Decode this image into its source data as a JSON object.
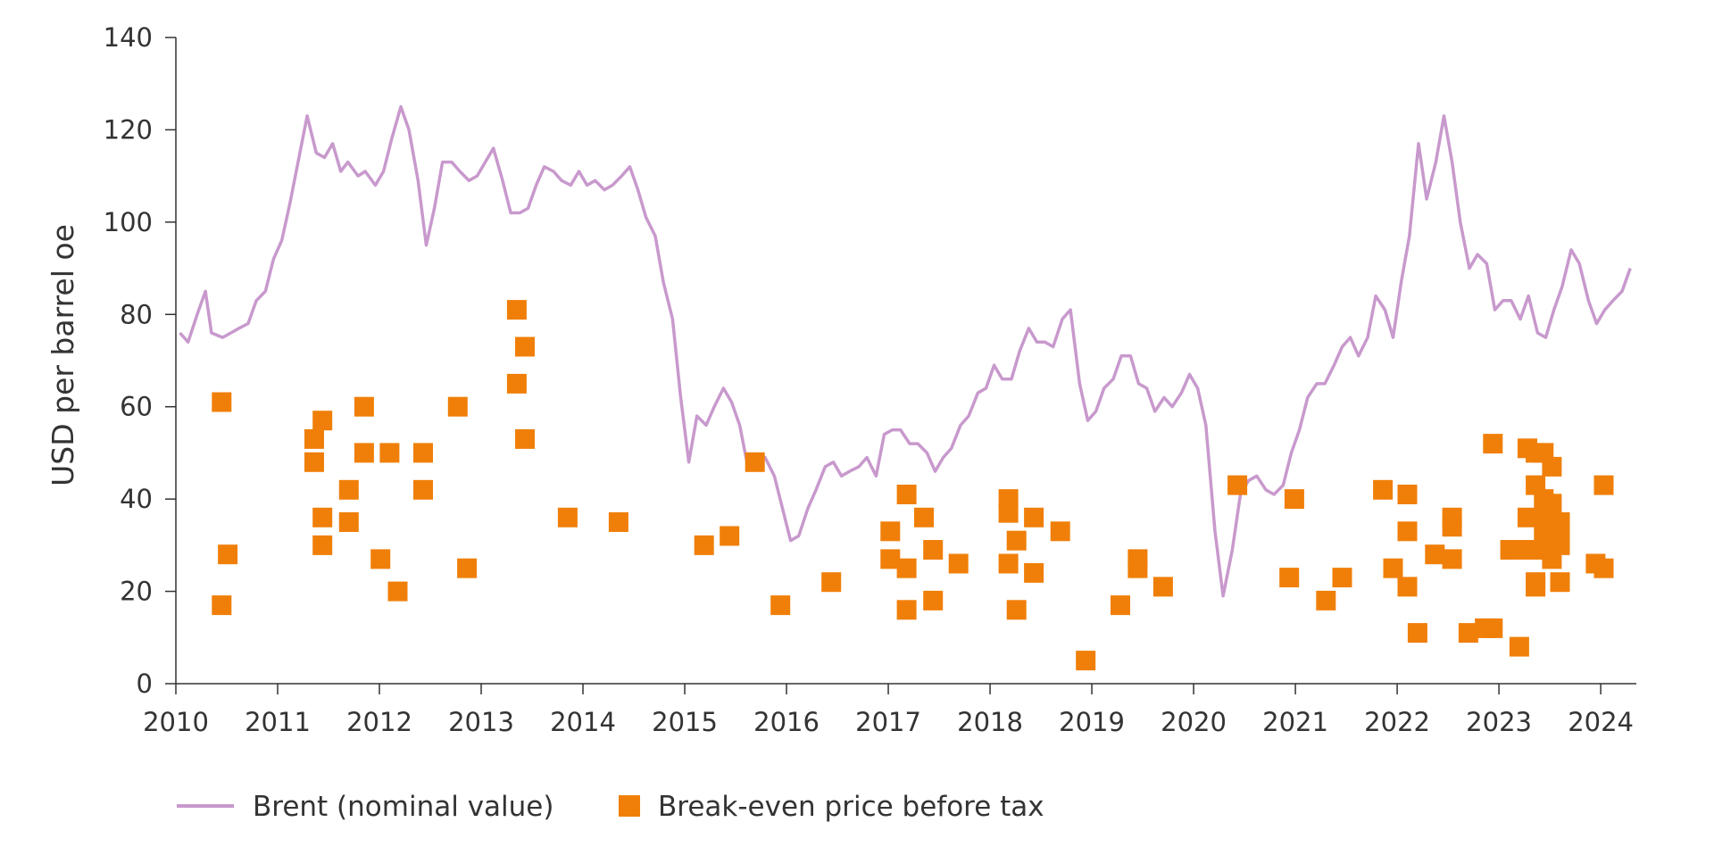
{
  "chart_data": {
    "type": "line+scatter",
    "ylabel": "USD per barrel oe",
    "xlabel": "",
    "xlim": [
      2010,
      2024.35
    ],
    "ylim": [
      0,
      140
    ],
    "x_ticks": [
      2010,
      2011,
      2012,
      2013,
      2014,
      2015,
      2016,
      2017,
      2018,
      2019,
      2020,
      2021,
      2022,
      2023,
      2024
    ],
    "x_tick_labels": [
      "2010",
      "2011",
      "2012",
      "2013",
      "2014",
      "2015",
      "2016",
      "2017",
      "2018",
      "2019",
      "2020",
      "2021",
      "2022",
      "2023",
      "2024"
    ],
    "y_ticks": [
      0,
      20,
      40,
      60,
      80,
      100,
      120,
      140
    ],
    "y_tick_labels": [
      "0",
      "20",
      "40",
      "60",
      "80",
      "100",
      "120",
      "140"
    ],
    "grid": false,
    "legend_position": "bottom-left",
    "colors": {
      "brent": "#c899cd",
      "breakeven": "#f07f09",
      "axis": "#333333"
    },
    "series": [
      {
        "name": "Brent (nominal value)",
        "kind": "line",
        "points": [
          [
            2010.04,
            76
          ],
          [
            2010.12,
            74
          ],
          [
            2010.21,
            80
          ],
          [
            2010.29,
            85
          ],
          [
            2010.35,
            76
          ],
          [
            2010.46,
            75
          ],
          [
            2010.54,
            76
          ],
          [
            2010.62,
            77
          ],
          [
            2010.71,
            78
          ],
          [
            2010.79,
            83
          ],
          [
            2010.88,
            85
          ],
          [
            2010.96,
            92
          ],
          [
            2011.04,
            96
          ],
          [
            2011.12,
            104
          ],
          [
            2011.21,
            114
          ],
          [
            2011.29,
            123
          ],
          [
            2011.38,
            115
          ],
          [
            2011.46,
            114
          ],
          [
            2011.54,
            117
          ],
          [
            2011.62,
            111
          ],
          [
            2011.69,
            113
          ],
          [
            2011.79,
            110
          ],
          [
            2011.86,
            111
          ],
          [
            2011.96,
            108
          ],
          [
            2012.04,
            111
          ],
          [
            2012.12,
            118
          ],
          [
            2012.21,
            125
          ],
          [
            2012.29,
            120
          ],
          [
            2012.38,
            109
          ],
          [
            2012.46,
            95
          ],
          [
            2012.54,
            103
          ],
          [
            2012.62,
            113
          ],
          [
            2012.71,
            113
          ],
          [
            2012.79,
            111
          ],
          [
            2012.88,
            109
          ],
          [
            2012.96,
            110
          ],
          [
            2013.04,
            113
          ],
          [
            2013.12,
            116
          ],
          [
            2013.21,
            109
          ],
          [
            2013.29,
            102
          ],
          [
            2013.38,
            102
          ],
          [
            2013.46,
            103
          ],
          [
            2013.54,
            108
          ],
          [
            2013.62,
            112
          ],
          [
            2013.71,
            111
          ],
          [
            2013.79,
            109
          ],
          [
            2013.88,
            108
          ],
          [
            2013.96,
            111
          ],
          [
            2014.04,
            108
          ],
          [
            2014.12,
            109
          ],
          [
            2014.21,
            107
          ],
          [
            2014.29,
            108
          ],
          [
            2014.38,
            110
          ],
          [
            2014.46,
            112
          ],
          [
            2014.54,
            107
          ],
          [
            2014.62,
            101
          ],
          [
            2014.71,
            97
          ],
          [
            2014.79,
            87
          ],
          [
            2014.88,
            79
          ],
          [
            2014.96,
            62
          ],
          [
            2015.04,
            48
          ],
          [
            2015.12,
            58
          ],
          [
            2015.21,
            56
          ],
          [
            2015.29,
            60
          ],
          [
            2015.38,
            64
          ],
          [
            2015.46,
            61
          ],
          [
            2015.54,
            56
          ],
          [
            2015.62,
            47
          ],
          [
            2015.71,
            48
          ],
          [
            2015.79,
            49
          ],
          [
            2015.88,
            45
          ],
          [
            2015.96,
            38
          ],
          [
            2016.04,
            31
          ],
          [
            2016.12,
            32
          ],
          [
            2016.21,
            38
          ],
          [
            2016.29,
            42
          ],
          [
            2016.38,
            47
          ],
          [
            2016.46,
            48
          ],
          [
            2016.54,
            45
          ],
          [
            2016.62,
            46
          ],
          [
            2016.71,
            47
          ],
          [
            2016.79,
            49
          ],
          [
            2016.88,
            45
          ],
          [
            2016.96,
            54
          ],
          [
            2017.04,
            55
          ],
          [
            2017.12,
            55
          ],
          [
            2017.21,
            52
          ],
          [
            2017.29,
            52
          ],
          [
            2017.38,
            50
          ],
          [
            2017.46,
            46
          ],
          [
            2017.54,
            49
          ],
          [
            2017.62,
            51
          ],
          [
            2017.71,
            56
          ],
          [
            2017.79,
            58
          ],
          [
            2017.88,
            63
          ],
          [
            2017.96,
            64
          ],
          [
            2018.04,
            69
          ],
          [
            2018.12,
            66
          ],
          [
            2018.21,
            66
          ],
          [
            2018.29,
            72
          ],
          [
            2018.38,
            77
          ],
          [
            2018.46,
            74
          ],
          [
            2018.54,
            74
          ],
          [
            2018.62,
            73
          ],
          [
            2018.71,
            79
          ],
          [
            2018.79,
            81
          ],
          [
            2018.88,
            65
          ],
          [
            2018.96,
            57
          ],
          [
            2019.04,
            59
          ],
          [
            2019.12,
            64
          ],
          [
            2019.21,
            66
          ],
          [
            2019.29,
            71
          ],
          [
            2019.38,
            71
          ],
          [
            2019.46,
            65
          ],
          [
            2019.54,
            64
          ],
          [
            2019.62,
            59
          ],
          [
            2019.71,
            62
          ],
          [
            2019.79,
            60
          ],
          [
            2019.88,
            63
          ],
          [
            2019.96,
            67
          ],
          [
            2020.04,
            64
          ],
          [
            2020.12,
            56
          ],
          [
            2020.21,
            33
          ],
          [
            2020.29,
            19
          ],
          [
            2020.38,
            29
          ],
          [
            2020.46,
            41
          ],
          [
            2020.54,
            44
          ],
          [
            2020.62,
            45
          ],
          [
            2020.71,
            42
          ],
          [
            2020.79,
            41
          ],
          [
            2020.88,
            43
          ],
          [
            2020.96,
            50
          ],
          [
            2021.04,
            55
          ],
          [
            2021.12,
            62
          ],
          [
            2021.21,
            65
          ],
          [
            2021.29,
            65
          ],
          [
            2021.38,
            69
          ],
          [
            2021.46,
            73
          ],
          [
            2021.54,
            75
          ],
          [
            2021.62,
            71
          ],
          [
            2021.71,
            75
          ],
          [
            2021.79,
            84
          ],
          [
            2021.88,
            81
          ],
          [
            2021.96,
            75
          ],
          [
            2022.04,
            87
          ],
          [
            2022.12,
            97
          ],
          [
            2022.21,
            117
          ],
          [
            2022.29,
            105
          ],
          [
            2022.38,
            113
          ],
          [
            2022.46,
            123
          ],
          [
            2022.54,
            113
          ],
          [
            2022.62,
            100
          ],
          [
            2022.71,
            90
          ],
          [
            2022.79,
            93
          ],
          [
            2022.88,
            91
          ],
          [
            2022.96,
            81
          ],
          [
            2023.04,
            83
          ],
          [
            2023.12,
            83
          ],
          [
            2023.21,
            79
          ],
          [
            2023.29,
            84
          ],
          [
            2023.38,
            76
          ],
          [
            2023.46,
            75
          ],
          [
            2023.54,
            81
          ],
          [
            2023.62,
            86
          ],
          [
            2023.71,
            94
          ],
          [
            2023.79,
            91
          ],
          [
            2023.88,
            83
          ],
          [
            2023.96,
            78
          ],
          [
            2024.04,
            81
          ],
          [
            2024.12,
            83
          ],
          [
            2024.21,
            85
          ],
          [
            2024.29,
            90
          ]
        ]
      },
      {
        "name": "Break-even price before tax",
        "kind": "scatter",
        "points": [
          [
            2010.45,
            61
          ],
          [
            2010.45,
            17
          ],
          [
            2010.51,
            28
          ],
          [
            2011.36,
            53
          ],
          [
            2011.36,
            48
          ],
          [
            2011.44,
            57
          ],
          [
            2011.44,
            36
          ],
          [
            2011.44,
            30
          ],
          [
            2011.7,
            42
          ],
          [
            2011.7,
            35
          ],
          [
            2011.85,
            60
          ],
          [
            2011.85,
            50
          ],
          [
            2012.01,
            27
          ],
          [
            2012.1,
            50
          ],
          [
            2012.18,
            20
          ],
          [
            2012.43,
            50
          ],
          [
            2012.43,
            42
          ],
          [
            2012.77,
            60
          ],
          [
            2012.86,
            25
          ],
          [
            2013.35,
            81
          ],
          [
            2013.35,
            65
          ],
          [
            2013.43,
            73
          ],
          [
            2013.43,
            53
          ],
          [
            2013.85,
            36
          ],
          [
            2014.35,
            35
          ],
          [
            2015.19,
            30
          ],
          [
            2015.44,
            32
          ],
          [
            2015.69,
            48
          ],
          [
            2015.94,
            17
          ],
          [
            2016.44,
            22
          ],
          [
            2017.02,
            33
          ],
          [
            2017.02,
            27
          ],
          [
            2017.18,
            41
          ],
          [
            2017.18,
            25
          ],
          [
            2017.18,
            16
          ],
          [
            2017.35,
            36
          ],
          [
            2017.44,
            29
          ],
          [
            2017.44,
            18
          ],
          [
            2017.69,
            26
          ],
          [
            2018.18,
            40
          ],
          [
            2018.18,
            37
          ],
          [
            2018.18,
            26
          ],
          [
            2018.26,
            31
          ],
          [
            2018.26,
            16
          ],
          [
            2018.43,
            36
          ],
          [
            2018.43,
            24
          ],
          [
            2018.69,
            33
          ],
          [
            2018.94,
            5
          ],
          [
            2019.28,
            17
          ],
          [
            2019.45,
            27
          ],
          [
            2019.45,
            25
          ],
          [
            2019.7,
            21
          ],
          [
            2020.43,
            43
          ],
          [
            2020.94,
            23
          ],
          [
            2020.99,
            40
          ],
          [
            2021.3,
            18
          ],
          [
            2021.46,
            23
          ],
          [
            2021.86,
            42
          ],
          [
            2021.96,
            25
          ],
          [
            2022.1,
            41
          ],
          [
            2022.1,
            33
          ],
          [
            2022.1,
            21
          ],
          [
            2022.2,
            11
          ],
          [
            2022.37,
            28
          ],
          [
            2022.54,
            36
          ],
          [
            2022.54,
            34
          ],
          [
            2022.54,
            27
          ],
          [
            2022.7,
            11
          ],
          [
            2022.86,
            12
          ],
          [
            2022.94,
            12
          ],
          [
            2022.94,
            52
          ],
          [
            2023.11,
            29
          ],
          [
            2023.2,
            8
          ],
          [
            2023.2,
            29
          ],
          [
            2023.28,
            51
          ],
          [
            2023.28,
            36
          ],
          [
            2023.28,
            29
          ],
          [
            2023.36,
            50
          ],
          [
            2023.36,
            43
          ],
          [
            2023.36,
            22
          ],
          [
            2023.36,
            21
          ],
          [
            2023.44,
            50
          ],
          [
            2023.44,
            40
          ],
          [
            2023.44,
            36
          ],
          [
            2023.44,
            33
          ],
          [
            2023.44,
            29
          ],
          [
            2023.52,
            47
          ],
          [
            2023.52,
            39
          ],
          [
            2023.52,
            27
          ],
          [
            2023.6,
            35
          ],
          [
            2023.6,
            33
          ],
          [
            2023.6,
            30
          ],
          [
            2023.6,
            22
          ],
          [
            2023.95,
            26
          ],
          [
            2024.03,
            25
          ],
          [
            2024.03,
            43
          ]
        ]
      }
    ]
  }
}
